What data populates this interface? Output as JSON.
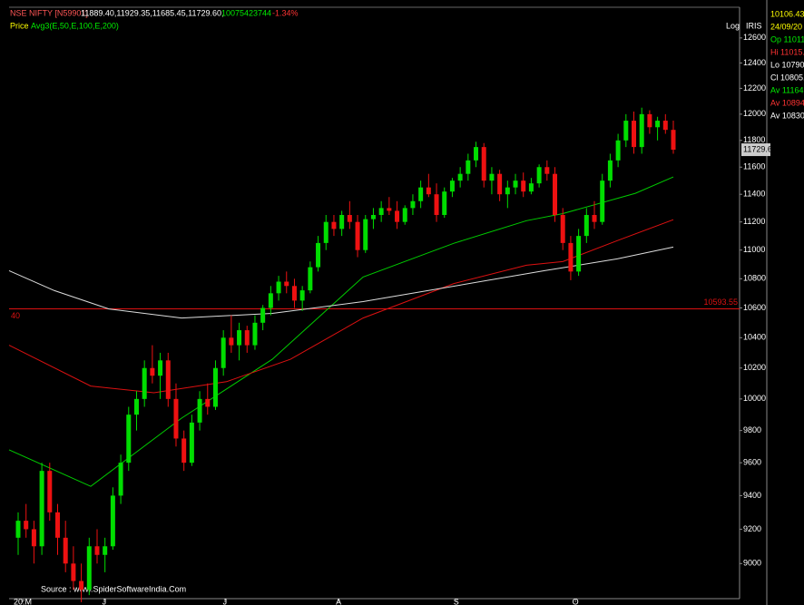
{
  "header": {
    "symbol": "NSE NIFTY [N59901]",
    "ohlc_text": "11889.40,11929.35,11685.45,11729.60,",
    "volume": "10075423744",
    "change": "-1.34%",
    "study_label": "Price",
    "study": "Avg3(E,50,E,100,E,200)"
  },
  "side_panel": {
    "value": "10106.43",
    "date": "24/09/20",
    "open": "Op 11011.",
    "high": "Hi 11015.",
    "low": "Lo 10790.",
    "close": "Cl 10805.",
    "avg1": "Av 11164.",
    "avg2": "Av 10894.",
    "avg3": "Av 10830."
  },
  "toolbar": {
    "log": "Log",
    "iris": "IRIS"
  },
  "source": "Source : www.SpiderSoftwareIndia.Com",
  "chart_data": {
    "type": "candlestick",
    "log_scale": true,
    "up_color": "#00dd00",
    "down_color": "#ee1111",
    "ohlc": [
      [
        9150,
        9300,
        9050,
        9250
      ],
      [
        9250,
        9350,
        9150,
        9200
      ],
      [
        9200,
        9250,
        9000,
        9100
      ],
      [
        9100,
        9600,
        9050,
        9550
      ],
      [
        9550,
        9600,
        9250,
        9300
      ],
      [
        9300,
        9350,
        9050,
        9150
      ],
      [
        9150,
        9250,
        8950,
        9000
      ],
      [
        9000,
        9100,
        8850,
        8900
      ],
      [
        8900,
        9000,
        8780,
        8850
      ],
      [
        8850,
        9150,
        8820,
        9100
      ],
      [
        9100,
        9200,
        9000,
        9050
      ],
      [
        9050,
        9150,
        8950,
        9100
      ],
      [
        9100,
        9450,
        9080,
        9400
      ],
      [
        9400,
        9650,
        9350,
        9600
      ],
      [
        9600,
        9950,
        9550,
        9900
      ],
      [
        9900,
        10050,
        9800,
        10000
      ],
      [
        10000,
        10250,
        9950,
        10200
      ],
      [
        10200,
        10350,
        10100,
        10150
      ],
      [
        10150,
        10300,
        10000,
        10250
      ],
      [
        10250,
        10300,
        9950,
        10000
      ],
      [
        10000,
        10100,
        9700,
        9750
      ],
      [
        9750,
        9800,
        9550,
        9600
      ],
      [
        9600,
        9900,
        9580,
        9850
      ],
      [
        9850,
        10050,
        9800,
        10000
      ],
      [
        10000,
        10100,
        9900,
        9950
      ],
      [
        9950,
        10250,
        9930,
        10200
      ],
      [
        10200,
        10450,
        10150,
        10400
      ],
      [
        10400,
        10550,
        10300,
        10350
      ],
      [
        10350,
        10500,
        10250,
        10450
      ],
      [
        10450,
        10480,
        10300,
        10350
      ],
      [
        10350,
        10550,
        10320,
        10500
      ],
      [
        10500,
        10620,
        10450,
        10600
      ],
      [
        10600,
        10750,
        10550,
        10700
      ],
      [
        10700,
        10820,
        10650,
        10780
      ],
      [
        10780,
        10850,
        10700,
        10750
      ],
      [
        10750,
        10800,
        10600,
        10650
      ],
      [
        10650,
        10750,
        10580,
        10720
      ],
      [
        10720,
        10920,
        10700,
        10880
      ],
      [
        10880,
        11100,
        10850,
        11050
      ],
      [
        11050,
        11250,
        11000,
        11200
      ],
      [
        11200,
        11250,
        11100,
        11150
      ],
      [
        11150,
        11280,
        11100,
        11250
      ],
      [
        11250,
        11350,
        11150,
        11200
      ],
      [
        11200,
        11250,
        10950,
        11000
      ],
      [
        11000,
        11250,
        10980,
        11220
      ],
      [
        11220,
        11300,
        11150,
        11250
      ],
      [
        11250,
        11350,
        11200,
        11300
      ],
      [
        11300,
        11380,
        11250,
        11280
      ],
      [
        11280,
        11350,
        11150,
        11200
      ],
      [
        11200,
        11320,
        11180,
        11300
      ],
      [
        11300,
        11400,
        11250,
        11350
      ],
      [
        11350,
        11500,
        11300,
        11450
      ],
      [
        11450,
        11550,
        11380,
        11400
      ],
      [
        11400,
        11480,
        11200,
        11250
      ],
      [
        11250,
        11450,
        11230,
        11420
      ],
      [
        11420,
        11520,
        11380,
        11500
      ],
      [
        11500,
        11600,
        11450,
        11550
      ],
      [
        11550,
        11700,
        11500,
        11650
      ],
      [
        11650,
        11790,
        11600,
        11750
      ],
      [
        11750,
        11780,
        11450,
        11500
      ],
      [
        11500,
        11600,
        11400,
        11550
      ],
      [
        11550,
        11580,
        11350,
        11400
      ],
      [
        11400,
        11500,
        11300,
        11450
      ],
      [
        11450,
        11550,
        11400,
        11500
      ],
      [
        11500,
        11560,
        11380,
        11420
      ],
      [
        11420,
        11520,
        11400,
        11480
      ],
      [
        11480,
        11620,
        11450,
        11600
      ],
      [
        11600,
        11650,
        11500,
        11550
      ],
      [
        11550,
        11600,
        11200,
        11250
      ],
      [
        11250,
        11300,
        11000,
        11050
      ],
      [
        11050,
        11100,
        10790,
        10850
      ],
      [
        10850,
        11150,
        10820,
        11100
      ],
      [
        11100,
        11300,
        11050,
        11250
      ],
      [
        11250,
        11350,
        11150,
        11200
      ],
      [
        11200,
        11550,
        11180,
        11500
      ],
      [
        11500,
        11700,
        11450,
        11650
      ],
      [
        11650,
        11850,
        11600,
        11800
      ],
      [
        11800,
        12000,
        11750,
        11950
      ],
      [
        11950,
        12020,
        11700,
        11750
      ],
      [
        11750,
        12050,
        11700,
        12000
      ],
      [
        12000,
        12030,
        11850,
        11900
      ],
      [
        11900,
        11980,
        11800,
        11950
      ],
      [
        11950,
        12000,
        11850,
        11880
      ],
      [
        11880,
        11950,
        11700,
        11730
      ]
    ],
    "series": [
      {
        "name": "E,50",
        "color": "#00cc00",
        "x": [
          -1.15,
          9.2,
          20.7,
          32.2,
          43.7,
          55.2,
          64.4,
          69,
          78.2,
          83
        ],
        "values": [
          9680,
          9456,
          9878,
          10257,
          10812,
          11048,
          11209,
          11260,
          11407,
          11527
        ]
      },
      {
        "name": "E,100",
        "color": "#dd1111",
        "x": [
          -1.15,
          9.2,
          17.2,
          26.4,
          34.5,
          43.7,
          55.2,
          64.4,
          69,
          75.9,
          83
        ],
        "values": [
          10350,
          10083,
          10040,
          10111,
          10257,
          10532,
          10767,
          10894,
          10919,
          11067,
          11216
        ]
      },
      {
        "name": "E,200",
        "color": "#dddddd",
        "x": [
          -1.15,
          4.6,
          11.5,
          20.7,
          32.2,
          43.7,
          55.2,
          66.7,
          75.9,
          83
        ],
        "values": [
          10856,
          10718,
          10593,
          10532,
          10563,
          10643,
          10749,
          10856,
          10938,
          11021
        ]
      }
    ],
    "hline": {
      "value": 10593.55,
      "label": "10593.55",
      "left_label": "40",
      "color": "#dd1111"
    },
    "price_tag": "11729.6",
    "xticks": [
      {
        "value": 0.57,
        "label": "20:M"
      },
      {
        "value": 10.9,
        "label": "J"
      },
      {
        "value": 26.2,
        "label": "J"
      },
      {
        "value": 40.6,
        "label": "A"
      },
      {
        "value": 55.5,
        "label": "S"
      },
      {
        "value": 70.6,
        "label": "O"
      }
    ],
    "ylim": [
      8800,
      12850
    ],
    "yticks": [
      9000,
      9200,
      9400,
      9600,
      9800,
      10000,
      10200,
      10400,
      10600,
      10800,
      11000,
      11200,
      11400,
      11600,
      11800,
      12000,
      12200,
      12400,
      12600
    ]
  }
}
